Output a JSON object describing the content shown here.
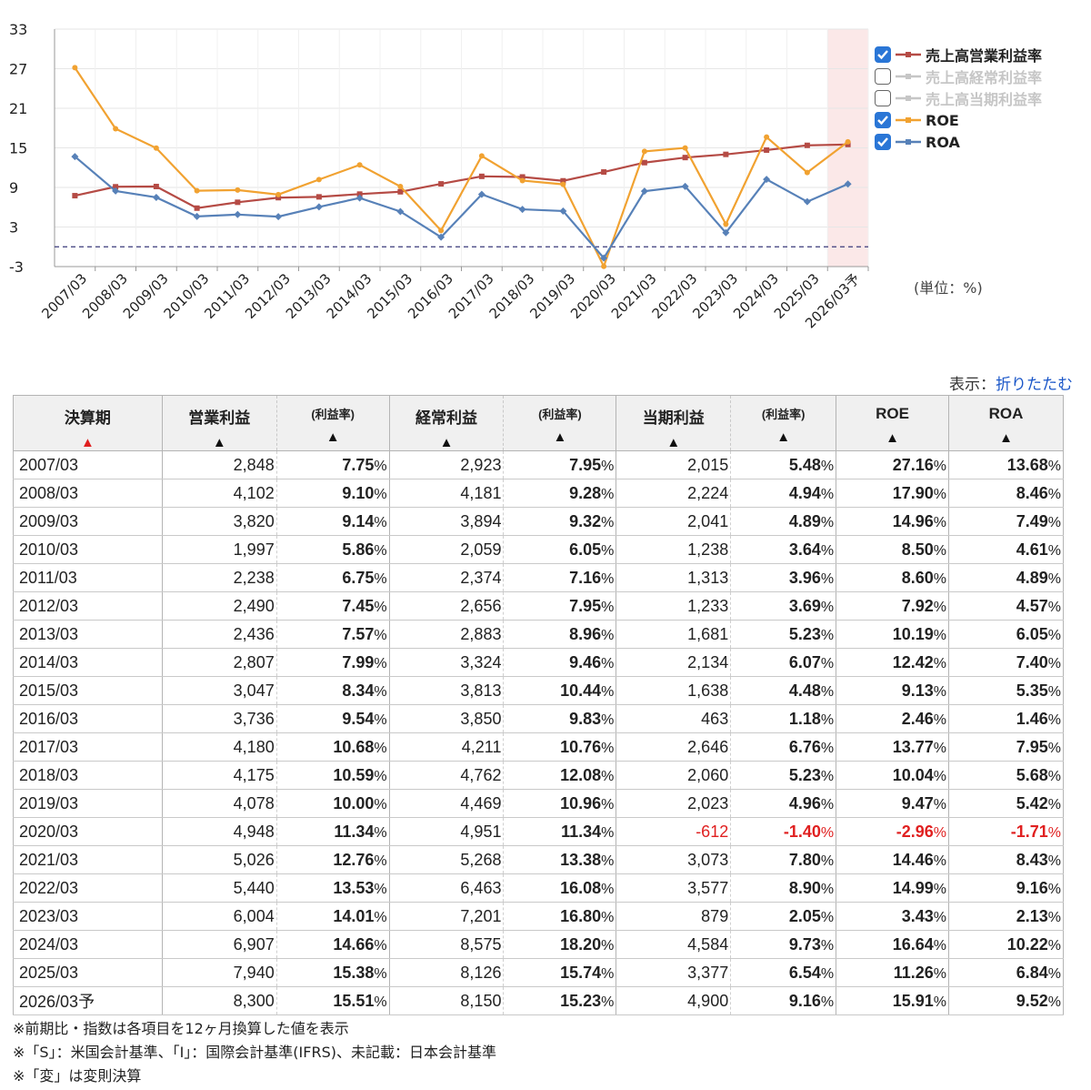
{
  "chart_data": {
    "type": "line",
    "categories": [
      "2007/03",
      "2008/03",
      "2009/03",
      "2010/03",
      "2011/03",
      "2012/03",
      "2013/03",
      "2014/03",
      "2015/03",
      "2016/03",
      "2017/03",
      "2018/03",
      "2019/03",
      "2020/03",
      "2021/03",
      "2022/03",
      "2023/03",
      "2024/03",
      "2025/03",
      "2026/03予"
    ],
    "ylim": [
      -3,
      33
    ],
    "yticks": [
      -3,
      3,
      9,
      15,
      21,
      27,
      33
    ],
    "reference_line": 0,
    "forecast_highlight_index": 19,
    "series": [
      {
        "name": "売上高営業利益率",
        "color": "#b54b45",
        "marker": "square",
        "visible": true,
        "values": [
          7.75,
          9.1,
          9.14,
          5.86,
          6.75,
          7.45,
          7.57,
          7.99,
          8.34,
          9.54,
          10.68,
          10.59,
          10.0,
          11.34,
          12.76,
          13.53,
          14.01,
          14.66,
          15.38,
          15.51
        ]
      },
      {
        "name": "売上高経常利益率",
        "color": "#c6c6c6",
        "marker": "triangle",
        "visible": false,
        "values": [
          7.95,
          9.28,
          9.32,
          6.05,
          7.16,
          7.95,
          8.96,
          9.46,
          10.44,
          9.83,
          10.76,
          12.08,
          10.96,
          11.34,
          13.38,
          16.08,
          16.8,
          18.2,
          15.74,
          15.23
        ]
      },
      {
        "name": "売上高当期利益率",
        "color": "#c6c6c6",
        "marker": "x",
        "visible": false,
        "values": [
          5.48,
          4.94,
          4.89,
          3.64,
          3.96,
          3.69,
          5.23,
          6.07,
          4.48,
          1.18,
          6.76,
          5.23,
          4.96,
          -1.4,
          7.8,
          8.9,
          2.05,
          9.73,
          6.54,
          9.16
        ]
      },
      {
        "name": "ROE",
        "color": "#f1a231",
        "marker": "circle",
        "visible": true,
        "values": [
          27.16,
          17.9,
          14.96,
          8.5,
          8.6,
          7.92,
          10.19,
          12.42,
          9.13,
          2.46,
          13.77,
          10.04,
          9.47,
          -2.96,
          14.46,
          14.99,
          3.43,
          16.64,
          11.26,
          15.91
        ]
      },
      {
        "name": "ROA",
        "color": "#5781b8",
        "marker": "diamond",
        "visible": true,
        "values": [
          13.68,
          8.46,
          7.49,
          4.61,
          4.89,
          4.57,
          6.05,
          7.4,
          5.35,
          1.46,
          7.95,
          5.68,
          5.42,
          -1.71,
          8.43,
          9.16,
          2.13,
          10.22,
          6.84,
          9.52
        ]
      }
    ],
    "unit_label": "(単位：%)"
  },
  "display_toggle": {
    "label": "表示：",
    "link": "折りたたむ"
  },
  "table": {
    "headers": {
      "period": "決算期",
      "op_profit": "営業利益",
      "op_rate": "(利益率)",
      "ord_profit": "経常利益",
      "ord_rate": "(利益率)",
      "net_profit": "当期利益",
      "net_rate": "(利益率)",
      "roe": "ROE",
      "roa": "ROA",
      "sort_up": "▲"
    },
    "rows": [
      {
        "period": "2007/03",
        "op": "2,848",
        "opr": "7.75",
        "ord": "2,923",
        "ordr": "7.95",
        "net": "2,015",
        "netr": "5.48",
        "roe": "27.16",
        "roa": "13.68"
      },
      {
        "period": "2008/03",
        "op": "4,102",
        "opr": "9.10",
        "ord": "4,181",
        "ordr": "9.28",
        "net": "2,224",
        "netr": "4.94",
        "roe": "17.90",
        "roa": "8.46"
      },
      {
        "period": "2009/03",
        "op": "3,820",
        "opr": "9.14",
        "ord": "3,894",
        "ordr": "9.32",
        "net": "2,041",
        "netr": "4.89",
        "roe": "14.96",
        "roa": "7.49"
      },
      {
        "period": "2010/03",
        "op": "1,997",
        "opr": "5.86",
        "ord": "2,059",
        "ordr": "6.05",
        "net": "1,238",
        "netr": "3.64",
        "roe": "8.50",
        "roa": "4.61"
      },
      {
        "period": "2011/03",
        "op": "2,238",
        "opr": "6.75",
        "ord": "2,374",
        "ordr": "7.16",
        "net": "1,313",
        "netr": "3.96",
        "roe": "8.60",
        "roa": "4.89"
      },
      {
        "period": "2012/03",
        "op": "2,490",
        "opr": "7.45",
        "ord": "2,656",
        "ordr": "7.95",
        "net": "1,233",
        "netr": "3.69",
        "roe": "7.92",
        "roa": "4.57"
      },
      {
        "period": "2013/03",
        "op": "2,436",
        "opr": "7.57",
        "ord": "2,883",
        "ordr": "8.96",
        "net": "1,681",
        "netr": "5.23",
        "roe": "10.19",
        "roa": "6.05"
      },
      {
        "period": "2014/03",
        "op": "2,807",
        "opr": "7.99",
        "ord": "3,324",
        "ordr": "9.46",
        "net": "2,134",
        "netr": "6.07",
        "roe": "12.42",
        "roa": "7.40"
      },
      {
        "period": "2015/03",
        "op": "3,047",
        "opr": "8.34",
        "ord": "3,813",
        "ordr": "10.44",
        "net": "1,638",
        "netr": "4.48",
        "roe": "9.13",
        "roa": "5.35"
      },
      {
        "period": "2016/03",
        "op": "3,736",
        "opr": "9.54",
        "ord": "3,850",
        "ordr": "9.83",
        "net": "463",
        "netr": "1.18",
        "roe": "2.46",
        "roa": "1.46"
      },
      {
        "period": "2017/03",
        "op": "4,180",
        "opr": "10.68",
        "ord": "4,211",
        "ordr": "10.76",
        "net": "2,646",
        "netr": "6.76",
        "roe": "13.77",
        "roa": "7.95"
      },
      {
        "period": "2018/03",
        "op": "4,175",
        "opr": "10.59",
        "ord": "4,762",
        "ordr": "12.08",
        "net": "2,060",
        "netr": "5.23",
        "roe": "10.04",
        "roa": "5.68"
      },
      {
        "period": "2019/03",
        "op": "4,078",
        "opr": "10.00",
        "ord": "4,469",
        "ordr": "10.96",
        "net": "2,023",
        "netr": "4.96",
        "roe": "9.47",
        "roa": "5.42"
      },
      {
        "period": "2020/03",
        "op": "4,948",
        "opr": "11.34",
        "ord": "4,951",
        "ordr": "11.34",
        "net": "-612",
        "netr": "-1.40",
        "roe": "-2.96",
        "roa": "-1.71"
      },
      {
        "period": "2021/03",
        "op": "5,026",
        "opr": "12.76",
        "ord": "5,268",
        "ordr": "13.38",
        "net": "3,073",
        "netr": "7.80",
        "roe": "14.46",
        "roa": "8.43"
      },
      {
        "period": "2022/03",
        "op": "5,440",
        "opr": "13.53",
        "ord": "6,463",
        "ordr": "16.08",
        "net": "3,577",
        "netr": "8.90",
        "roe": "14.99",
        "roa": "9.16"
      },
      {
        "period": "2023/03",
        "op": "6,004",
        "opr": "14.01",
        "ord": "7,201",
        "ordr": "16.80",
        "net": "879",
        "netr": "2.05",
        "roe": "3.43",
        "roa": "2.13"
      },
      {
        "period": "2024/03",
        "op": "6,907",
        "opr": "14.66",
        "ord": "8,575",
        "ordr": "18.20",
        "net": "4,584",
        "netr": "9.73",
        "roe": "16.64",
        "roa": "10.22"
      },
      {
        "period": "2025/03",
        "op": "7,940",
        "opr": "15.38",
        "ord": "8,126",
        "ordr": "15.74",
        "net": "3,377",
        "netr": "6.54",
        "roe": "11.26",
        "roa": "6.84"
      },
      {
        "period": "2026/03予",
        "op": "8,300",
        "opr": "15.51",
        "ord": "8,150",
        "ordr": "15.23",
        "net": "4,900",
        "netr": "9.16",
        "roe": "15.91",
        "roa": "9.52"
      }
    ],
    "pct_suffix": "%"
  },
  "notes": [
    "※前期比・指数は各項目を12ヶ月換算した値を表示",
    "※「S」：米国会計基準、「I」：国際会計基準(IFRS)、未記載：日本会計基準",
    "※「変」は変則決算"
  ]
}
